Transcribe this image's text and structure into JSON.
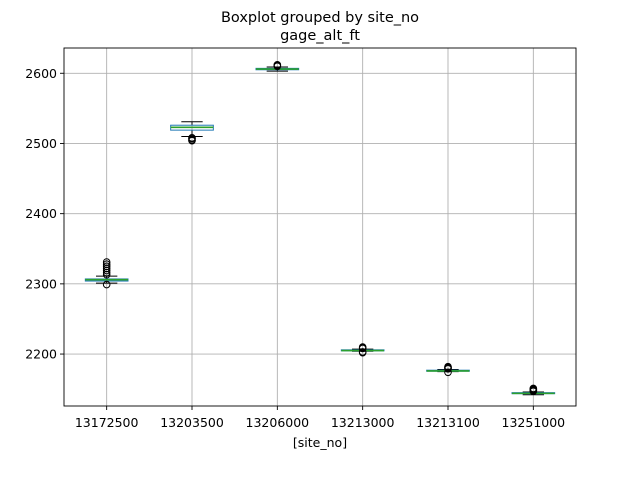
{
  "chart_data": {
    "type": "boxplot",
    "title": "Boxplot grouped by site_no",
    "subtitle": "gage_alt_ft",
    "xlabel": "[site_no]",
    "ylabel": "",
    "ylim": [
      2126,
      2636
    ],
    "yticks": [
      2200,
      2300,
      2400,
      2500,
      2600
    ],
    "grid": true,
    "colors": {
      "box": "#1f77b4",
      "median": "#2ca02c",
      "whisker": "#000000",
      "grid": "#b0b0b0"
    },
    "categories": [
      "13172500",
      "13203500",
      "13206000",
      "13213000",
      "13213100",
      "13251000"
    ],
    "boxes": [
      {
        "label": "13172500",
        "whislo": 2301,
        "q1": 2304,
        "med": 2306,
        "q3": 2307,
        "whishi": 2311,
        "fliers": [
          2299,
          2313,
          2316,
          2319,
          2322,
          2325,
          2328,
          2331
        ]
      },
      {
        "label": "13203500",
        "whislo": 2510,
        "q1": 2519,
        "med": 2523,
        "q3": 2526,
        "whishi": 2531,
        "fliers": [
          2504,
          2505,
          2507,
          2508
        ]
      },
      {
        "label": "13206000",
        "whislo": 2603,
        "q1": 2605,
        "med": 2606,
        "q3": 2607,
        "whishi": 2609,
        "fliers": [
          2610,
          2611,
          2612
        ]
      },
      {
        "label": "13213000",
        "whislo": 2204,
        "q1": 2205,
        "med": 2205,
        "q3": 2206,
        "whishi": 2207,
        "fliers": [
          2202,
          2203,
          2208,
          2209,
          2210
        ]
      },
      {
        "label": "13213100",
        "whislo": 2175,
        "q1": 2176,
        "med": 2176,
        "q3": 2177,
        "whishi": 2178,
        "fliers": [
          2174,
          2179,
          2180,
          2181,
          2182
        ]
      },
      {
        "label": "13251000",
        "whislo": 2142,
        "q1": 2144,
        "med": 2144,
        "q3": 2145,
        "whishi": 2146,
        "fliers": [
          2147,
          2148,
          2149,
          2150,
          2151
        ]
      }
    ]
  }
}
